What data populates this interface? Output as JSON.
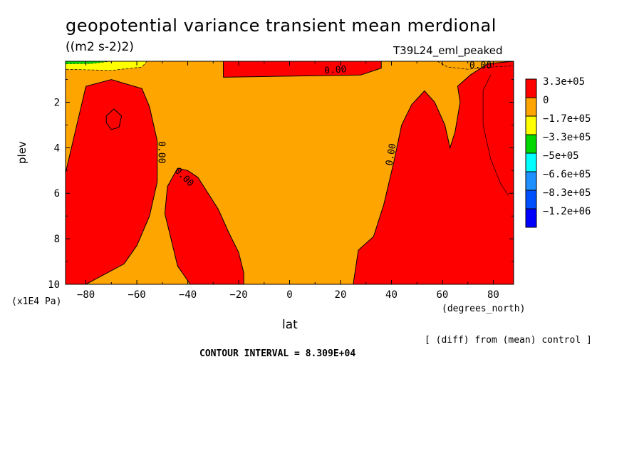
{
  "header": {
    "title": "geopotential variance transient mean merdional",
    "units": "((m2 s-2)2)",
    "run": "T39L24_eml_peaked"
  },
  "axes": {
    "ylabel": "plev",
    "yunit": "(x1E4 Pa)",
    "xlabel": "lat",
    "xunit": "(degrees_north)"
  },
  "notes": {
    "diff": "[ (diff) from (mean) control ]",
    "contour_interval": "CONTOUR INTERVAL = 8.309E+04"
  },
  "legend": [
    {
      "label": "3.3e+05",
      "color": "#ff0000"
    },
    {
      "label": "0",
      "color": "#ffa500"
    },
    {
      "label": "-1.7e+05",
      "color": "#ffff00"
    },
    {
      "label": "-3.3e+05",
      "color": "#00d800"
    },
    {
      "label": "-5e+05",
      "color": "#00ffff"
    },
    {
      "label": "-6.6e+05",
      "color": "#1e90ff"
    },
    {
      "label": "-8.3e+05",
      "color": "#0050ff"
    },
    {
      "label": "-1.2e+06",
      "color": "#0000ff"
    }
  ],
  "chart_data": {
    "type": "heatmap",
    "title": "geopotential variance transient mean merdional",
    "xlabel": "lat",
    "ylabel": "plev",
    "xlim": [
      -88,
      88
    ],
    "ylim": [
      10,
      0.2
    ],
    "x_ticks": [
      -80,
      -60,
      -40,
      -20,
      0,
      20,
      40,
      60,
      80
    ],
    "y_ticks": [
      2,
      4,
      6,
      8,
      10
    ],
    "contour_label": "0.00",
    "background_color": "#ffa500",
    "regions": [
      {
        "name": "south-polar-max",
        "color": "#ff0000",
        "lat": [
          -88,
          -88,
          -80,
          -70,
          -58,
          -55,
          -52,
          -52,
          -55,
          -60,
          -65,
          -80,
          -88
        ],
        "plev": [
          10,
          5.1,
          1.3,
          1.0,
          1.4,
          2.2,
          3.7,
          5.5,
          7.0,
          8.3,
          9.1,
          10,
          10
        ]
      },
      {
        "name": "south-midlat-max",
        "color": "#ff0000",
        "lat": [
          -49,
          -48,
          -44,
          -40,
          -36,
          -28,
          -24,
          -20,
          -18,
          -18,
          -39,
          -44,
          -47,
          -49
        ],
        "plev": [
          6.9,
          5.7,
          4.9,
          5.0,
          5.3,
          6.7,
          7.7,
          8.6,
          9.5,
          10,
          10,
          9.2,
          7.8,
          6.9
        ]
      },
      {
        "name": "north-max",
        "color": "#ff0000",
        "lat": [
          25,
          27,
          33,
          37,
          41,
          44,
          48,
          53,
          57,
          61,
          63,
          65,
          67,
          66,
          71,
          78,
          88,
          88,
          25
        ],
        "plev": [
          10,
          8.5,
          7.9,
          6.5,
          4.6,
          3.0,
          2.1,
          1.5,
          2.0,
          3.0,
          4.0,
          3.3,
          2.0,
          1.3,
          0.8,
          0.3,
          0.2,
          10,
          10
        ]
      },
      {
        "name": "upper-strip-max",
        "color": "#ff0000",
        "lat": [
          -26,
          -26,
          28,
          36,
          36,
          -26
        ],
        "plev": [
          0.2,
          0.9,
          0.8,
          0.5,
          0.2,
          0.2
        ]
      }
    ]
  }
}
